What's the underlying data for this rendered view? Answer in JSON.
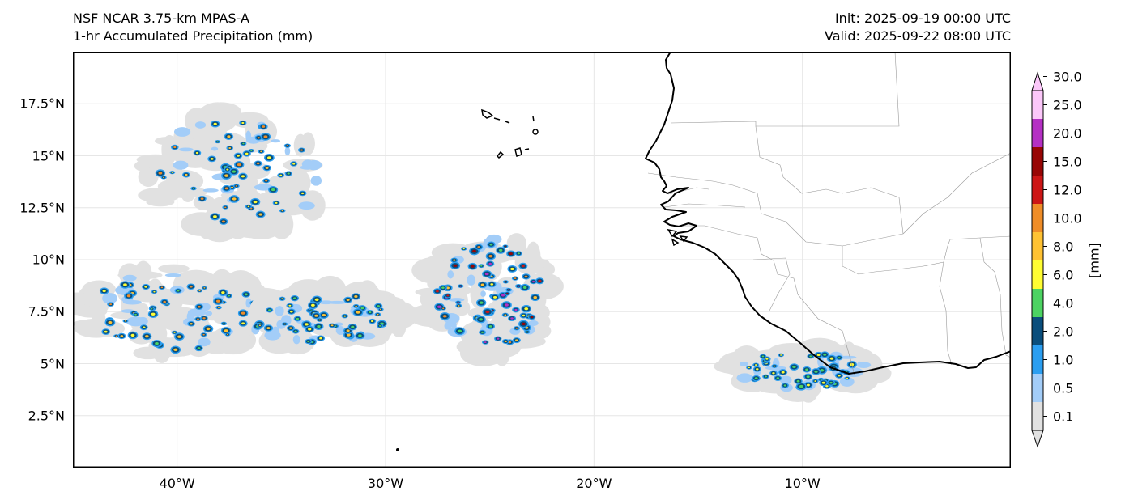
{
  "header": {
    "model": "NSF NCAR 3.75-km MPAS-A",
    "field": "1-hr Accumulated Precipitation (mm)",
    "init": "Init: 2025-09-19 00:00 UTC",
    "valid": "Valid: 2025-09-22 08:00 UTC"
  },
  "map": {
    "lon_range": [
      -45,
      0
    ],
    "lat_range": [
      0,
      20
    ],
    "lat_ticks": [
      {
        "value": 17.5,
        "label": "17.5°N"
      },
      {
        "value": 15,
        "label": "15°N"
      },
      {
        "value": 12.5,
        "label": "12.5°N"
      },
      {
        "value": 10,
        "label": "10°N"
      },
      {
        "value": 7.5,
        "label": "7.5°N"
      },
      {
        "value": 5,
        "label": "5°N"
      },
      {
        "value": 2.5,
        "label": "2.5°N"
      }
    ],
    "lon_ticks": [
      {
        "value": -40,
        "label": "40°W"
      },
      {
        "value": -30,
        "label": "30°W"
      },
      {
        "value": -20,
        "label": "20°W"
      },
      {
        "value": -10,
        "label": "10°W"
      }
    ],
    "colors": {
      "land": "#ffffff",
      "coast": "#000000",
      "border": "#999999",
      "grid": "#e6e6e6"
    },
    "precip_systems": [
      {
        "name": "northwest cluster",
        "lon": -37,
        "lat": 14.2,
        "rlon": 4.5,
        "rlat": 3.0,
        "peak": 4.0
      },
      {
        "name": "west band",
        "lon": -40,
        "lat": 7.5,
        "rlon": 5.0,
        "rlat": 2.2,
        "peak": 4.0
      },
      {
        "name": "central band",
        "lon": -33,
        "lat": 7.2,
        "rlon": 4.0,
        "rlat": 1.4,
        "peak": 3.0
      },
      {
        "name": "east cluster",
        "lon": -25,
        "lat": 8.3,
        "rlon": 3.0,
        "rlat": 3.0,
        "peak": 7.0
      },
      {
        "name": "guinea coast",
        "lon": -10,
        "lat": 4.7,
        "rlon": 3.5,
        "rlat": 1.0,
        "peak": 2.0
      }
    ]
  },
  "colorbar": {
    "unit": "[mm]",
    "levels": [
      "0.1",
      "0.5",
      "1.0",
      "2.0",
      "4.0",
      "6.0",
      "8.0",
      "10.0",
      "12.0",
      "15.0",
      "20.0",
      "25.0",
      "30.0"
    ],
    "colors": [
      "#e1e1e1",
      "#a3cdf8",
      "#2b9ef0",
      "#0a4e7c",
      "#4cd362",
      "#fffd33",
      "#ffc233",
      "#ef8d28",
      "#cc1616",
      "#980605",
      "#b530c4",
      "#fbc7f9"
    ],
    "extend": "both"
  }
}
